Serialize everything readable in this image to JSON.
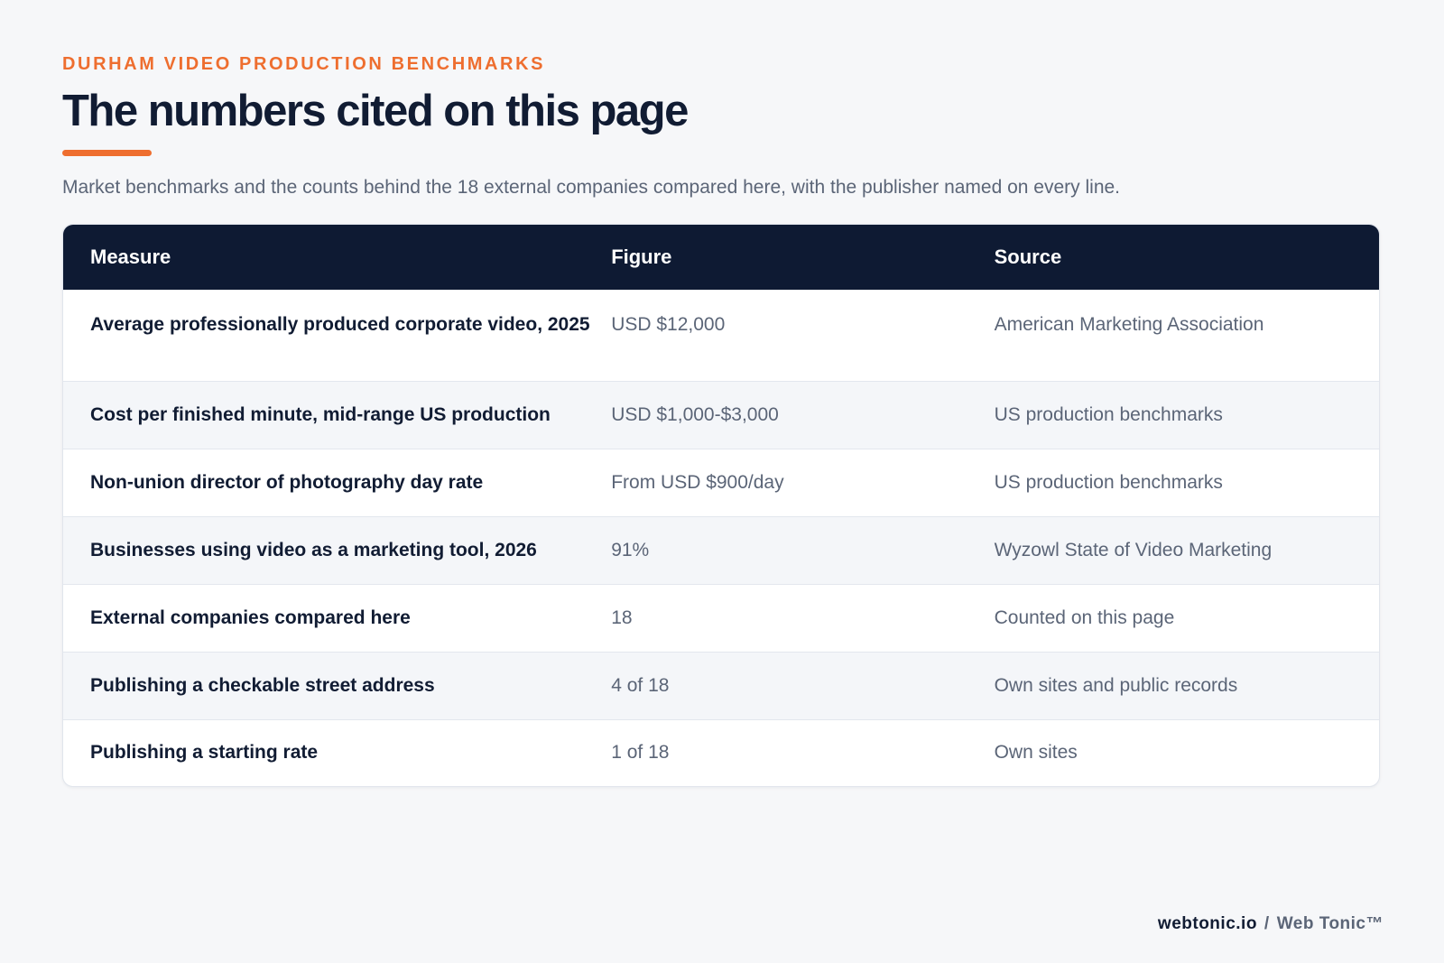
{
  "header": {
    "eyebrow": "DURHAM VIDEO PRODUCTION BENCHMARKS",
    "title": "The numbers cited on this page",
    "subtitle": "Market benchmarks and the counts behind the 18 external companies compared here, with the publisher named on every line."
  },
  "table": {
    "columns": [
      "Measure",
      "Figure",
      "Source"
    ],
    "rows": [
      {
        "measure": "Average professionally produced corporate video, 2025",
        "figure": "USD $12,000",
        "source": "American Marketing Association"
      },
      {
        "measure": "Cost per finished minute, mid-range US production",
        "figure": "USD $1,000-$3,000",
        "source": "US production benchmarks"
      },
      {
        "measure": "Non-union director of photography day rate",
        "figure": "From USD $900/day",
        "source": "US production benchmarks"
      },
      {
        "measure": "Businesses using video as a marketing tool, 2026",
        "figure": "91%",
        "source": "Wyzowl State of Video Marketing"
      },
      {
        "measure": "External companies compared here",
        "figure": "18",
        "source": "Counted on this page"
      },
      {
        "measure": "Publishing a checkable street address",
        "figure": "4 of 18",
        "source": "Own sites and public records"
      },
      {
        "measure": "Publishing a starting rate",
        "figure": "1 of 18",
        "source": "Own sites"
      }
    ]
  },
  "footer": {
    "domain": "webtonic.io",
    "separator": "/",
    "brand": "Web Tonic™"
  },
  "colors": {
    "accent": "#ee6e2f",
    "header_bg": "#0e1a33",
    "title_text": "#111c33",
    "muted_text": "#5b6577",
    "page_bg": "#f6f7f9",
    "alt_row_bg": "#f4f6f9"
  }
}
